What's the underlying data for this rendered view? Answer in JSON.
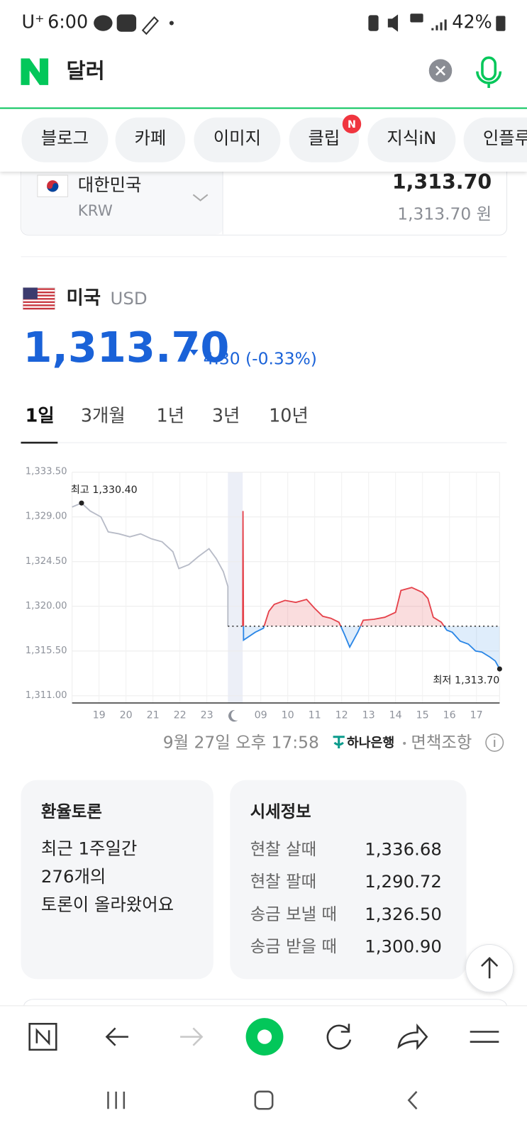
{
  "status_bar": {
    "carrier": "U⁺",
    "time": "6:00",
    "battery": "42%"
  },
  "search": {
    "query": "달러"
  },
  "tabs": {
    "items": [
      "블로그",
      "카페",
      "이미지",
      "클립",
      "지식iN",
      "인플루"
    ],
    "badge": "N"
  },
  "converter": {
    "country": "대한민국",
    "code": "KRW",
    "amount": "1,313.70",
    "amount_won": "1,313.70 원"
  },
  "currency": {
    "country": "미국",
    "code": "USD",
    "rate": "1,313.70",
    "change": "4.30 (-0.33%)"
  },
  "periods": [
    "1일",
    "3개월",
    "1년",
    "3년",
    "10년"
  ],
  "chart_data": {
    "type": "line",
    "xlim": [
      0,
      15.86
    ],
    "xticks": [
      {
        "value": 1,
        "label": "19"
      },
      {
        "value": 2,
        "label": "20"
      },
      {
        "value": 3,
        "label": "21"
      },
      {
        "value": 4,
        "label": "22"
      },
      {
        "value": 5,
        "label": "23"
      },
      {
        "value": 7,
        "label": "09"
      },
      {
        "value": 8,
        "label": "10"
      },
      {
        "value": 9,
        "label": "11"
      },
      {
        "value": 10,
        "label": "12"
      },
      {
        "value": 11,
        "label": "13"
      },
      {
        "value": 12,
        "label": "14"
      },
      {
        "value": 13,
        "label": "15"
      },
      {
        "value": 14,
        "label": "16"
      },
      {
        "value": 15,
        "label": "17"
      }
    ],
    "ylim": [
      1311.0,
      1333.5
    ],
    "yticks": [
      {
        "value": 1311.0,
        "label": "1,311.00"
      },
      {
        "value": 1315.5,
        "label": "1,315.50"
      },
      {
        "value": 1320.0,
        "label": "1,320.00"
      },
      {
        "value": 1324.5,
        "label": "1,324.50"
      },
      {
        "value": 1329.0,
        "label": "1,329.00"
      },
      {
        "value": 1333.5,
        "label": "1,333.50"
      }
    ],
    "grid": true,
    "baseline": 1318.0,
    "series": [
      {
        "color": "#b7bbc7",
        "x": [
          0,
          0.35,
          0.67,
          1.07,
          1.34,
          1.74,
          2.14,
          2.54,
          2.94,
          3.34,
          3.74,
          3.96,
          4.33,
          4.68,
          5.08,
          5.35,
          5.61,
          5.78,
          5.78
        ],
        "values": [
          1330.0,
          1330.4,
          1329.6,
          1329.0,
          1327.5,
          1327.3,
          1327.0,
          1327.3,
          1326.8,
          1326.5,
          1325.5,
          1323.8,
          1324.2,
          1325.0,
          1325.8,
          1324.8,
          1323.5,
          1322.0,
          1318.0
        ]
      },
      {
        "color": "#e5414a",
        "color_below": "#2a86e6",
        "x": [
          6.33,
          6.34,
          6.36,
          6.8,
          7.1,
          7.3,
          7.5,
          7.9,
          8.3,
          8.7,
          9.0,
          9.3,
          9.6,
          9.9,
          10.1,
          10.3,
          10.6,
          10.8,
          11.2,
          11.6,
          12.0,
          12.2,
          12.6,
          13.0,
          13.2,
          13.4,
          13.7,
          13.9,
          14.1,
          14.4,
          14.7,
          14.97,
          15.2,
          15.5,
          15.7,
          15.86
        ],
        "values": [
          1318.0,
          1329.6,
          1316.6,
          1317.4,
          1317.8,
          1319.5,
          1320.2,
          1320.6,
          1320.4,
          1320.7,
          1319.8,
          1319.0,
          1318.8,
          1318.4,
          1317.2,
          1315.9,
          1317.4,
          1318.6,
          1318.7,
          1318.9,
          1319.4,
          1321.6,
          1321.9,
          1321.4,
          1320.8,
          1318.9,
          1318.4,
          1317.6,
          1317.4,
          1316.5,
          1316.2,
          1315.5,
          1315.4,
          1314.9,
          1314.5,
          1313.7
        ]
      }
    ],
    "max_label": "최고 1,330.40",
    "min_label": "최저 1,313.70"
  },
  "source": {
    "time": "9월 27일 오후 17:58",
    "bank": "하나은행",
    "disclaimer": "면책조항"
  },
  "discussion": {
    "title": "환율토론",
    "lines": [
      "최근 1주일간",
      "276개의",
      "토론이 올라왔어요"
    ]
  },
  "quotes": {
    "title": "시세정보",
    "rows": [
      [
        "현찰 살때",
        "1,336.68"
      ],
      [
        "현찰 팔때",
        "1,290.72"
      ],
      [
        "송금 보낼 때",
        "1,326.50"
      ],
      [
        "송금 받을 때",
        "1,300.90"
      ]
    ]
  }
}
